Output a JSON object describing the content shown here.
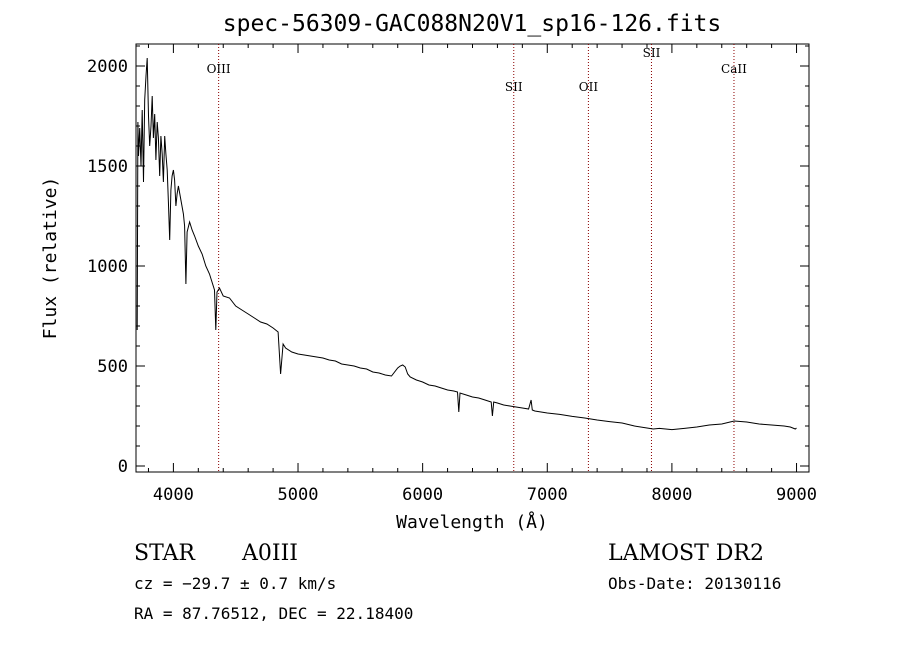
{
  "chart_data": {
    "type": "line",
    "title": "spec-56309-GAC088N20V1_sp16-126.fits",
    "xlabel": "Wavelength (Å)",
    "ylabel": "Flux (relative)",
    "xlim": [
      3700,
      9100
    ],
    "ylim": [
      -30,
      2110
    ],
    "x_ticks": [
      4000,
      5000,
      6000,
      7000,
      8000,
      9000
    ],
    "y_ticks": [
      0,
      500,
      1000,
      1500,
      2000
    ],
    "grid": false,
    "series": [
      {
        "color": "#000000",
        "points": [
          [
            3710,
            680
          ],
          [
            3715,
            1720
          ],
          [
            3720,
            1550
          ],
          [
            3730,
            1690
          ],
          [
            3740,
            1500
          ],
          [
            3750,
            1780
          ],
          [
            3760,
            1420
          ],
          [
            3770,
            1830
          ],
          [
            3780,
            1950
          ],
          [
            3790,
            2040
          ],
          [
            3800,
            1750
          ],
          [
            3810,
            1600
          ],
          [
            3820,
            1700
          ],
          [
            3830,
            1850
          ],
          [
            3840,
            1640
          ],
          [
            3850,
            1760
          ],
          [
            3860,
            1530
          ],
          [
            3870,
            1720
          ],
          [
            3880,
            1640
          ],
          [
            3890,
            1450
          ],
          [
            3900,
            1650
          ],
          [
            3910,
            1560
          ],
          [
            3920,
            1420
          ],
          [
            3930,
            1650
          ],
          [
            3940,
            1560
          ],
          [
            3950,
            1480
          ],
          [
            3960,
            1320
          ],
          [
            3970,
            1130
          ],
          [
            3980,
            1380
          ],
          [
            3990,
            1450
          ],
          [
            4000,
            1480
          ],
          [
            4010,
            1430
          ],
          [
            4020,
            1300
          ],
          [
            4030,
            1360
          ],
          [
            4040,
            1400
          ],
          [
            4060,
            1330
          ],
          [
            4080,
            1260
          ],
          [
            4090,
            1200
          ],
          [
            4100,
            910
          ],
          [
            4110,
            1170
          ],
          [
            4130,
            1220
          ],
          [
            4150,
            1180
          ],
          [
            4170,
            1150
          ],
          [
            4200,
            1100
          ],
          [
            4230,
            1060
          ],
          [
            4260,
            1000
          ],
          [
            4290,
            960
          ],
          [
            4310,
            920
          ],
          [
            4330,
            880
          ],
          [
            4340,
            680
          ],
          [
            4350,
            870
          ],
          [
            4370,
            890
          ],
          [
            4400,
            850
          ],
          [
            4450,
            840
          ],
          [
            4500,
            800
          ],
          [
            4550,
            780
          ],
          [
            4600,
            760
          ],
          [
            4650,
            740
          ],
          [
            4700,
            720
          ],
          [
            4750,
            710
          ],
          [
            4800,
            690
          ],
          [
            4840,
            670
          ],
          [
            4860,
            460
          ],
          [
            4880,
            610
          ],
          [
            4900,
            590
          ],
          [
            4950,
            570
          ],
          [
            5000,
            560
          ],
          [
            5050,
            555
          ],
          [
            5100,
            550
          ],
          [
            5150,
            545
          ],
          [
            5200,
            540
          ],
          [
            5250,
            530
          ],
          [
            5300,
            525
          ],
          [
            5350,
            510
          ],
          [
            5400,
            505
          ],
          [
            5450,
            500
          ],
          [
            5500,
            490
          ],
          [
            5550,
            485
          ],
          [
            5600,
            470
          ],
          [
            5650,
            465
          ],
          [
            5700,
            455
          ],
          [
            5750,
            450
          ],
          [
            5800,
            490
          ],
          [
            5820,
            500
          ],
          [
            5840,
            505
          ],
          [
            5860,
            495
          ],
          [
            5880,
            460
          ],
          [
            5900,
            445
          ],
          [
            5950,
            430
          ],
          [
            6000,
            420
          ],
          [
            6050,
            405
          ],
          [
            6100,
            400
          ],
          [
            6150,
            390
          ],
          [
            6200,
            380
          ],
          [
            6250,
            375
          ],
          [
            6280,
            370
          ],
          [
            6290,
            270
          ],
          [
            6300,
            365
          ],
          [
            6350,
            355
          ],
          [
            6400,
            345
          ],
          [
            6450,
            340
          ],
          [
            6500,
            330
          ],
          [
            6550,
            320
          ],
          [
            6560,
            250
          ],
          [
            6570,
            320
          ],
          [
            6600,
            315
          ],
          [
            6650,
            305
          ],
          [
            6700,
            300
          ],
          [
            6750,
            295
          ],
          [
            6800,
            290
          ],
          [
            6850,
            285
          ],
          [
            6870,
            330
          ],
          [
            6880,
            280
          ],
          [
            6900,
            275
          ],
          [
            7000,
            265
          ],
          [
            7100,
            258
          ],
          [
            7200,
            248
          ],
          [
            7300,
            240
          ],
          [
            7400,
            230
          ],
          [
            7500,
            222
          ],
          [
            7600,
            215
          ],
          [
            7700,
            200
          ],
          [
            7800,
            190
          ],
          [
            7850,
            185
          ],
          [
            7900,
            188
          ],
          [
            8000,
            182
          ],
          [
            8100,
            188
          ],
          [
            8200,
            195
          ],
          [
            8300,
            205
          ],
          [
            8400,
            210
          ],
          [
            8500,
            225
          ],
          [
            8600,
            220
          ],
          [
            8700,
            210
          ],
          [
            8800,
            205
          ],
          [
            8900,
            200
          ],
          [
            8950,
            195
          ],
          [
            8990,
            185
          ],
          [
            9000,
            190
          ]
        ]
      }
    ],
    "lines": [
      {
        "label": "OIII",
        "x": 4363,
        "color": "#8b0000"
      },
      {
        "label": "SII",
        "x": 6731,
        "color": "#8b0000"
      },
      {
        "label": "OII",
        "x": 7330,
        "color": "#8b0000"
      },
      {
        "label": "SII",
        "x": 7836,
        "color": "#8b0000"
      },
      {
        "label": "CaII",
        "x": 8498,
        "color": "#8b0000"
      }
    ]
  },
  "info": {
    "object_class": "STAR",
    "subclass": "A0III",
    "survey": "LAMOST DR2",
    "cz": "cz = −29.7 ± 0.7 km/s",
    "obs_date": "Obs-Date: 20130116",
    "coords": "RA =  87.76512, DEC =  22.18400"
  }
}
